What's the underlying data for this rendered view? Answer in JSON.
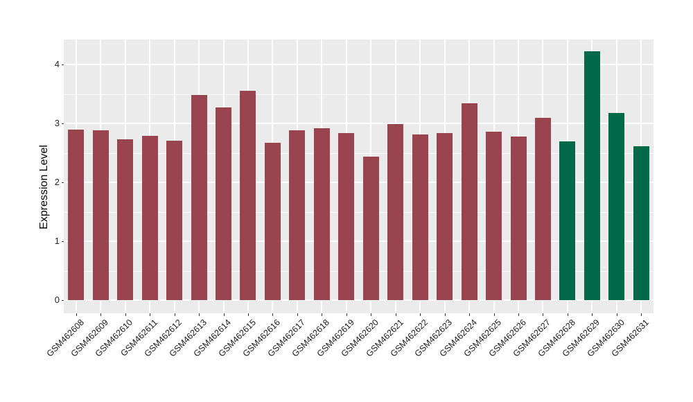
{
  "chart_data": {
    "type": "bar",
    "title": "",
    "ylabel": "Expression Level",
    "xlabel": "",
    "categories": [
      "GSM462608",
      "GSM462609",
      "GSM462610",
      "GSM462611",
      "GSM462612",
      "GSM462613",
      "GSM462614",
      "GSM462615",
      "GSM462616",
      "GSM462617",
      "GSM462618",
      "GSM462619",
      "GSM462620",
      "GSM462621",
      "GSM462622",
      "GSM462623",
      "GSM462624",
      "GSM462625",
      "GSM462626",
      "GSM462627",
      "GSM462628",
      "GSM462629",
      "GSM462630",
      "GSM462631"
    ],
    "values": [
      2.9,
      2.88,
      2.73,
      2.79,
      2.71,
      3.48,
      3.27,
      3.55,
      2.67,
      2.88,
      2.92,
      2.83,
      2.44,
      2.99,
      2.81,
      2.83,
      3.34,
      2.86,
      2.78,
      3.1,
      2.69,
      4.22,
      3.18,
      2.61
    ],
    "bar_groups": [
      "group1",
      "group1",
      "group1",
      "group1",
      "group1",
      "group1",
      "group1",
      "group1",
      "group1",
      "group1",
      "group1",
      "group1",
      "group1",
      "group1",
      "group1",
      "group1",
      "group1",
      "group1",
      "group1",
      "group1",
      "group2",
      "group2",
      "group2",
      "group2"
    ],
    "group_colors": {
      "group1": "#9A4450",
      "group2": "#006A48"
    },
    "yticks": [
      0,
      1,
      2,
      3,
      4
    ],
    "ytick_labels": [
      "0",
      "1",
      "2",
      "3",
      "4"
    ],
    "minor_tick_step": 0.5,
    "ylim": [
      -0.22,
      4.42
    ],
    "grid": true,
    "legend_position": "none",
    "panel_background": "#EBEBEB",
    "gridline_color": "#FFFFFF"
  }
}
